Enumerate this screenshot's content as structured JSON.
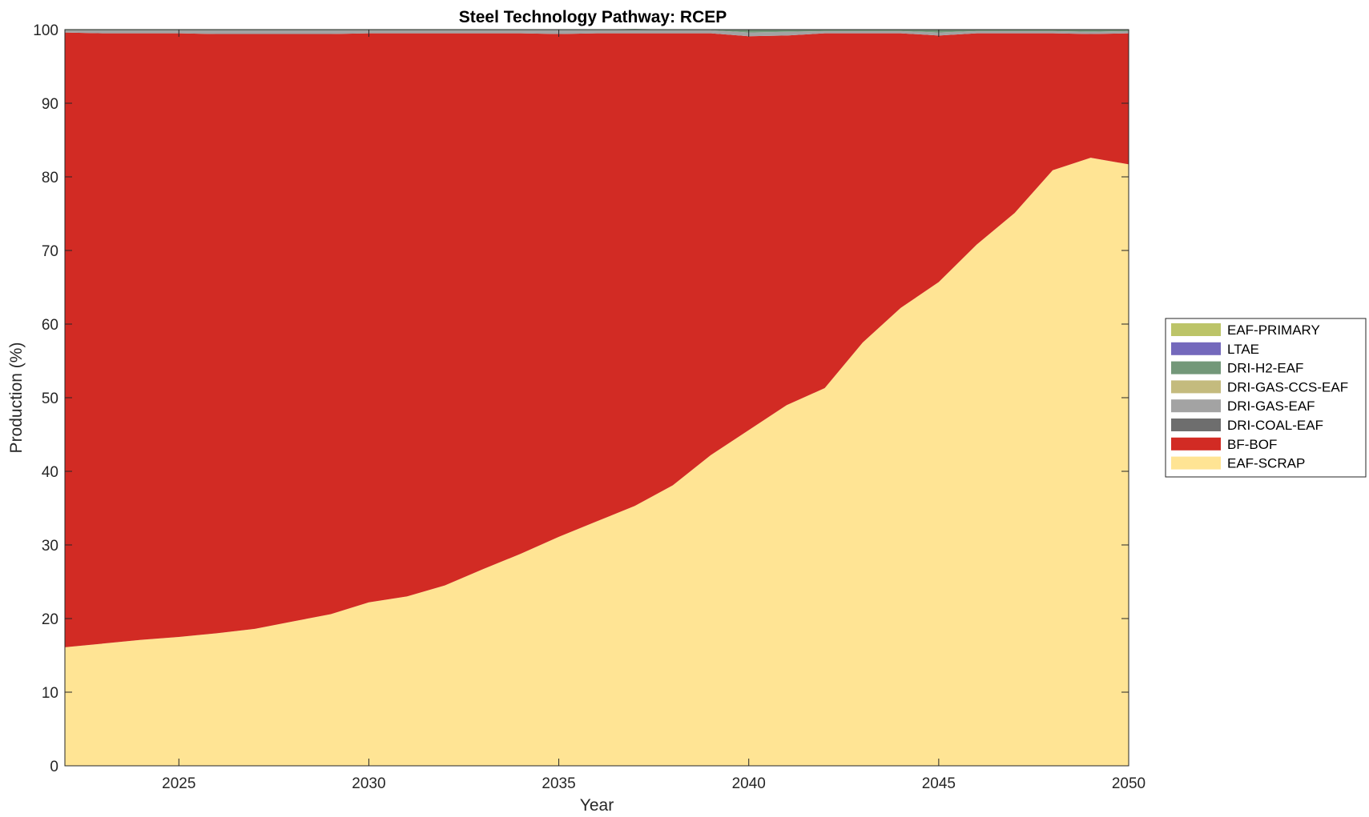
{
  "chart_data": {
    "type": "area",
    "stacked": true,
    "title": "Steel Technology Pathway: RCEP",
    "xlabel": "Year",
    "ylabel": "Production (%)",
    "xlim": [
      2022,
      2050
    ],
    "ylim": [
      0,
      100
    ],
    "xticks": [
      2025,
      2030,
      2035,
      2040,
      2045,
      2050
    ],
    "yticks": [
      0,
      10,
      20,
      30,
      40,
      50,
      60,
      70,
      80,
      90,
      100
    ],
    "grid": false,
    "legend_position": "right",
    "x": [
      2022,
      2023,
      2024,
      2025,
      2026,
      2027,
      2028,
      2029,
      2030,
      2031,
      2032,
      2033,
      2034,
      2035,
      2036,
      2037,
      2038,
      2039,
      2040,
      2041,
      2042,
      2043,
      2044,
      2045,
      2046,
      2047,
      2048,
      2049,
      2050
    ],
    "series": [
      {
        "name": "EAF-SCRAP",
        "color": "#FFE494",
        "values": [
          16.1,
          16.6,
          17.1,
          17.5,
          18.0,
          18.6,
          19.6,
          20.6,
          22.2,
          23.0,
          24.5,
          26.7,
          28.8,
          31.1,
          33.2,
          35.3,
          38.1,
          42.2,
          45.6,
          49.0,
          51.3,
          57.5,
          62.2,
          65.7,
          70.8,
          75.1,
          80.9,
          82.6,
          81.7
        ]
      },
      {
        "name": "BF-BOF",
        "color": "#D22B24",
        "values": [
          83.5,
          82.9,
          82.4,
          82.0,
          81.4,
          80.8,
          79.8,
          78.8,
          77.3,
          76.5,
          75.0,
          72.8,
          70.7,
          68.3,
          66.3,
          64.2,
          61.4,
          57.3,
          53.5,
          50.2,
          48.2,
          42.0,
          37.3,
          33.5,
          28.7,
          24.4,
          18.6,
          16.8,
          17.8
        ]
      },
      {
        "name": "DRI-COAL-EAF",
        "color": "#6E6E6E",
        "values": [
          0,
          0,
          0,
          0,
          0,
          0,
          0,
          0,
          0,
          0,
          0,
          0,
          0,
          0,
          0,
          0,
          0,
          0,
          0,
          0,
          0,
          0,
          0,
          0,
          0,
          0,
          0,
          0,
          0
        ]
      },
      {
        "name": "DRI-GAS-EAF",
        "color": "#A3A3A3",
        "values": [
          0.3,
          0.4,
          0.4,
          0.4,
          0.5,
          0.5,
          0.5,
          0.5,
          0.4,
          0.4,
          0.4,
          0.4,
          0.4,
          0.5,
          0.4,
          0.4,
          0.4,
          0.4,
          0.5,
          0.5,
          0.3,
          0.3,
          0.3,
          0.4,
          0.3,
          0.3,
          0.3,
          0.3,
          0.3
        ]
      },
      {
        "name": "DRI-GAS-CCS-EAF",
        "color": "#C4BB7E",
        "values": [
          0,
          0,
          0,
          0,
          0,
          0,
          0,
          0,
          0,
          0,
          0,
          0,
          0,
          0,
          0,
          0,
          0,
          0,
          0,
          0,
          0,
          0,
          0,
          0,
          0,
          0,
          0,
          0,
          0
        ]
      },
      {
        "name": "DRI-H2-EAF",
        "color": "#739879",
        "values": [
          0.1,
          0.1,
          0.1,
          0.1,
          0.1,
          0.1,
          0.1,
          0.1,
          0.1,
          0.1,
          0.1,
          0.1,
          0.1,
          0.1,
          0.1,
          0.2,
          0.1,
          0.1,
          0.4,
          0.3,
          0.2,
          0.2,
          0.2,
          0.4,
          0.2,
          0.2,
          0.2,
          0.3,
          0.2
        ]
      },
      {
        "name": "LTAE",
        "color": "#7469BC",
        "values": [
          0,
          0,
          0,
          0,
          0,
          0,
          0,
          0,
          0,
          0,
          0,
          0,
          0,
          0,
          0,
          0,
          0,
          0,
          0,
          0,
          0,
          0,
          0,
          0,
          0,
          0,
          0,
          0,
          0
        ]
      },
      {
        "name": "EAF-PRIMARY",
        "color": "#BCC468",
        "values": [
          0,
          0,
          0,
          0,
          0,
          0,
          0,
          0,
          0,
          0,
          0,
          0,
          0,
          0,
          0,
          0,
          0,
          0,
          0,
          0,
          0,
          0,
          0,
          0,
          0,
          0,
          0,
          0,
          0
        ]
      }
    ],
    "legend_order": [
      "EAF-PRIMARY",
      "LTAE",
      "DRI-H2-EAF",
      "DRI-GAS-CCS-EAF",
      "DRI-GAS-EAF",
      "DRI-COAL-EAF",
      "BF-BOF",
      "EAF-SCRAP"
    ]
  }
}
